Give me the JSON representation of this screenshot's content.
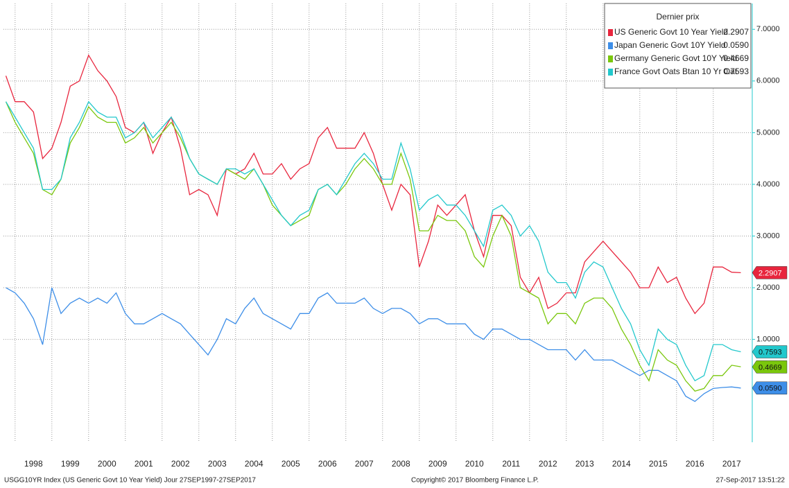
{
  "chart_data": {
    "type": "line",
    "legend_title": "Dernier prix",
    "footer_left": "USGG10YR Index (US Generic Govt 10 Year Yield)  Jour 27SEP1997-27SEP2017",
    "footer_center": "Copyright© 2017 Bloomberg Finance L.P.",
    "footer_right": "27-Sep-2017 13:51:22",
    "x": [
      1997.75,
      1998,
      1998.25,
      1998.5,
      1998.75,
      1999,
      1999.25,
      1999.5,
      1999.75,
      2000,
      2000.25,
      2000.5,
      2000.75,
      2001,
      2001.25,
      2001.5,
      2001.75,
      2002,
      2002.25,
      2002.5,
      2002.75,
      2003,
      2003.25,
      2003.5,
      2003.75,
      2004,
      2004.25,
      2004.5,
      2004.75,
      2005,
      2005.25,
      2005.5,
      2005.75,
      2006,
      2006.25,
      2006.5,
      2006.75,
      2007,
      2007.25,
      2007.5,
      2007.75,
      2008,
      2008.25,
      2008.5,
      2008.75,
      2009,
      2009.25,
      2009.5,
      2009.75,
      2010,
      2010.25,
      2010.5,
      2010.75,
      2011,
      2011.25,
      2011.5,
      2011.75,
      2012,
      2012.25,
      2012.5,
      2012.75,
      2013,
      2013.25,
      2013.5,
      2013.75,
      2014,
      2014.25,
      2014.5,
      2014.75,
      2015,
      2015.25,
      2015.5,
      2015.75,
      2016,
      2016.25,
      2016.5,
      2016.75,
      2017,
      2017.25,
      2017.5,
      2017.75
    ],
    "xlim": [
      1997.74,
      2017.74
    ],
    "xticks": [
      1998,
      1999,
      2000,
      2001,
      2002,
      2003,
      2004,
      2005,
      2006,
      2007,
      2008,
      2009,
      2010,
      2011,
      2012,
      2013,
      2014,
      2015,
      2016,
      2017
    ],
    "ylim": [
      -0.95,
      7.5
    ],
    "yticks": [
      {
        "value": 1,
        "label": "1.0000"
      },
      {
        "value": 2,
        "label": "2.0000"
      },
      {
        "value": 3,
        "label": "3.0000"
      },
      {
        "value": 4,
        "label": "4.0000"
      },
      {
        "value": 5,
        "label": "5.0000"
      },
      {
        "value": 6,
        "label": "6.0000"
      },
      {
        "value": 7,
        "label": "7.0000"
      }
    ],
    "grid": true,
    "series": [
      {
        "name": "US Generic Govt 10 Year Yield",
        "color": "#e8253d",
        "last": {
          "value": 2.2907,
          "label": "2.2907"
        },
        "values": [
          6.1,
          5.6,
          5.6,
          5.4,
          4.5,
          4.7,
          5.2,
          5.9,
          6.0,
          6.5,
          6.2,
          6.0,
          5.7,
          5.1,
          5.0,
          5.2,
          4.6,
          5.0,
          5.3,
          4.7,
          3.8,
          3.9,
          3.8,
          3.4,
          4.3,
          4.2,
          4.3,
          4.6,
          4.2,
          4.2,
          4.4,
          4.1,
          4.3,
          4.4,
          4.9,
          5.1,
          4.7,
          4.7,
          4.7,
          5.0,
          4.6,
          4.0,
          3.5,
          4.0,
          3.8,
          2.4,
          2.9,
          3.6,
          3.4,
          3.6,
          3.8,
          3.1,
          2.6,
          3.4,
          3.4,
          3.2,
          2.2,
          1.9,
          2.2,
          1.6,
          1.7,
          1.9,
          1.9,
          2.5,
          2.7,
          2.9,
          2.7,
          2.5,
          2.3,
          2.0,
          2.0,
          2.4,
          2.1,
          2.2,
          1.8,
          1.5,
          1.7,
          2.4,
          2.4,
          2.3,
          2.29
        ]
      },
      {
        "name": "Japan Generic Govt 10Y Yield",
        "color": "#3d8ee8",
        "last": {
          "value": 0.059,
          "label": "0.0590"
        },
        "values": [
          2.0,
          1.9,
          1.7,
          1.4,
          0.9,
          2.0,
          1.5,
          1.7,
          1.8,
          1.7,
          1.8,
          1.7,
          1.9,
          1.5,
          1.3,
          1.3,
          1.4,
          1.5,
          1.4,
          1.3,
          1.1,
          0.9,
          0.7,
          1.0,
          1.4,
          1.3,
          1.6,
          1.8,
          1.5,
          1.4,
          1.3,
          1.2,
          1.5,
          1.5,
          1.8,
          1.9,
          1.7,
          1.7,
          1.7,
          1.8,
          1.6,
          1.5,
          1.6,
          1.6,
          1.5,
          1.3,
          1.4,
          1.4,
          1.3,
          1.3,
          1.3,
          1.1,
          1.0,
          1.2,
          1.2,
          1.1,
          1.0,
          1.0,
          0.9,
          0.8,
          0.8,
          0.8,
          0.6,
          0.8,
          0.6,
          0.6,
          0.6,
          0.5,
          0.4,
          0.3,
          0.4,
          0.4,
          0.3,
          0.2,
          -0.1,
          -0.2,
          -0.05,
          0.05,
          0.07,
          0.08,
          0.059
        ]
      },
      {
        "name": "Germany Generic Govt 10Y Yield",
        "color": "#7ac70c",
        "last": {
          "value": 0.4669,
          "label": "0.4669"
        },
        "values": [
          5.6,
          5.2,
          4.9,
          4.6,
          3.9,
          3.8,
          4.1,
          4.8,
          5.1,
          5.5,
          5.3,
          5.2,
          5.2,
          4.8,
          4.9,
          5.1,
          4.8,
          5.0,
          5.2,
          4.9,
          4.5,
          4.2,
          4.1,
          4.0,
          4.3,
          4.2,
          4.1,
          4.3,
          4.0,
          3.6,
          3.4,
          3.2,
          3.3,
          3.4,
          3.9,
          4.0,
          3.8,
          4.0,
          4.3,
          4.5,
          4.3,
          4.0,
          4.0,
          4.6,
          4.1,
          3.1,
          3.1,
          3.4,
          3.3,
          3.3,
          3.1,
          2.6,
          2.4,
          3.0,
          3.4,
          3.0,
          2.0,
          1.9,
          1.8,
          1.3,
          1.5,
          1.5,
          1.3,
          1.7,
          1.8,
          1.8,
          1.6,
          1.2,
          0.9,
          0.5,
          0.2,
          0.8,
          0.6,
          0.5,
          0.2,
          0.0,
          0.05,
          0.3,
          0.3,
          0.5,
          0.47
        ]
      },
      {
        "name": "France Govt Oats Btan 10 Yr Oat",
        "color": "#22c8cc",
        "last": {
          "value": 0.7593,
          "label": "0.7593"
        },
        "values": [
          5.6,
          5.3,
          5.0,
          4.7,
          3.9,
          3.9,
          4.1,
          4.9,
          5.2,
          5.6,
          5.4,
          5.3,
          5.3,
          4.9,
          5.0,
          5.2,
          4.9,
          5.1,
          5.3,
          5.0,
          4.5,
          4.2,
          4.1,
          4.0,
          4.3,
          4.3,
          4.2,
          4.3,
          4.0,
          3.7,
          3.4,
          3.2,
          3.4,
          3.5,
          3.9,
          4.0,
          3.8,
          4.1,
          4.4,
          4.6,
          4.4,
          4.1,
          4.1,
          4.8,
          4.3,
          3.5,
          3.7,
          3.8,
          3.6,
          3.6,
          3.4,
          3.1,
          2.8,
          3.5,
          3.6,
          3.4,
          3.0,
          3.2,
          2.9,
          2.3,
          2.1,
          2.1,
          1.8,
          2.3,
          2.5,
          2.4,
          2.0,
          1.6,
          1.3,
          0.8,
          0.5,
          1.2,
          1.0,
          0.9,
          0.5,
          0.2,
          0.3,
          0.9,
          0.9,
          0.8,
          0.76
        ]
      }
    ]
  }
}
